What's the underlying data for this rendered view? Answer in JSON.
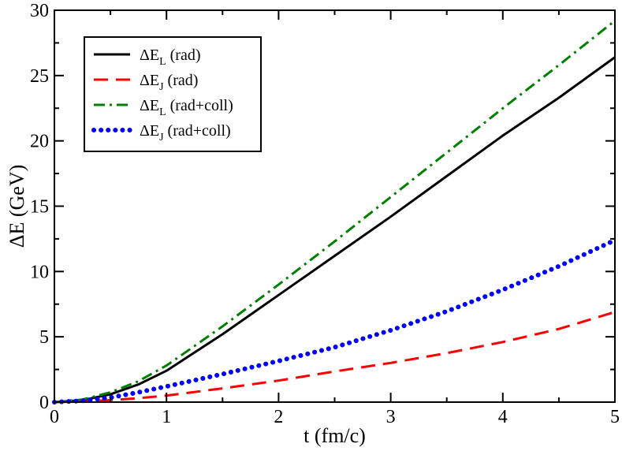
{
  "chart_data": {
    "type": "line",
    "xlabel": "t (fm/c)",
    "ylabel": "ΔE (GeV)",
    "xlim": [
      0,
      5
    ],
    "ylim": [
      0,
      30
    ],
    "xticks": [
      "0",
      "1",
      "2",
      "3",
      "4",
      "5"
    ],
    "yticks": [
      "0",
      "5",
      "10",
      "15",
      "20",
      "25",
      "30"
    ],
    "legend_position": "top-left",
    "grid": false,
    "series": [
      {
        "name": "ΔE_L (rad)",
        "legend": {
          "base": "ΔE",
          "sub": "L",
          "suffix": " (rad)"
        },
        "color": "#000000",
        "style": "solid",
        "x": [
          0,
          0.25,
          0.5,
          0.75,
          1.0,
          1.25,
          1.5,
          1.75,
          2.0,
          2.5,
          3.0,
          3.5,
          4.0,
          4.5,
          5.0
        ],
        "y": [
          0,
          0.15,
          0.6,
          1.35,
          2.4,
          3.8,
          5.2,
          6.7,
          8.2,
          11.2,
          14.2,
          17.3,
          20.4,
          23.3,
          26.4
        ]
      },
      {
        "name": "ΔE_J (rad)",
        "legend": {
          "base": "ΔE",
          "sub": "J",
          "suffix": " (rad)"
        },
        "color": "#ff0000",
        "style": "dashed",
        "x": [
          0,
          0.25,
          0.5,
          0.75,
          1.0,
          1.5,
          2.0,
          2.5,
          3.0,
          3.5,
          4.0,
          4.5,
          5.0
        ],
        "y": [
          0,
          0.05,
          0.15,
          0.3,
          0.5,
          1.05,
          1.65,
          2.35,
          3.0,
          3.75,
          4.6,
          5.6,
          6.9
        ]
      },
      {
        "name": "ΔE_L (rad+coll)",
        "legend": {
          "base": "ΔE",
          "sub": "L",
          "suffix": " (rad+coll)"
        },
        "color": "#008000",
        "style": "dashdot",
        "x": [
          0,
          0.25,
          0.5,
          0.75,
          1.0,
          1.25,
          1.5,
          1.75,
          2.0,
          2.5,
          3.0,
          3.5,
          4.0,
          4.5,
          5.0
        ],
        "y": [
          0,
          0.2,
          0.75,
          1.6,
          2.8,
          4.3,
          5.8,
          7.4,
          9.0,
          12.3,
          15.7,
          19.1,
          22.5,
          25.8,
          29.2
        ]
      },
      {
        "name": "ΔE_J (rad+coll)",
        "legend": {
          "base": "ΔE",
          "sub": "J",
          "suffix": " (rad+coll)"
        },
        "color": "#0000ff",
        "style": "dotted",
        "x": [
          0,
          0.25,
          0.5,
          0.75,
          1.0,
          1.5,
          2.0,
          2.5,
          3.0,
          3.5,
          4.0,
          4.5,
          5.0
        ],
        "y": [
          0,
          0.1,
          0.35,
          0.75,
          1.2,
          2.15,
          3.15,
          4.2,
          5.5,
          6.95,
          8.6,
          10.4,
          12.4
        ]
      }
    ]
  }
}
